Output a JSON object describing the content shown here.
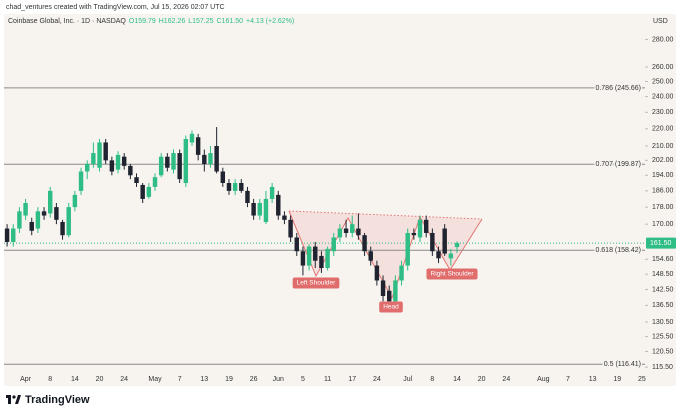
{
  "header": "chad_ventures created with TradingView.com, Jul 15, 2026 02:07 UTC",
  "footer": "TradingView",
  "chart_data": {
    "type": "candlestick",
    "title": "Coinbase Global, Inc. · 1D · NASDAQ",
    "ohlc_text": [
      "O159.79",
      "H162.26",
      "L157.25",
      "C161.50",
      "+4.13 (+2.62%)"
    ],
    "currency": "USD",
    "log_scale": true,
    "up_color": "#2ebd85",
    "down_color": "#1f2430",
    "categories": [
      null,
      null,
      null,
      "Apr",
      null,
      null,
      null,
      "8",
      null,
      null,
      null,
      "14",
      null,
      null,
      null,
      "20",
      null,
      null,
      null,
      "24",
      null,
      null,
      null,
      null,
      "May",
      null,
      null,
      null,
      "7",
      null,
      null,
      null,
      "13",
      null,
      null,
      null,
      "19",
      null,
      null,
      null,
      "26",
      null,
      null,
      null,
      "Jun",
      null,
      null,
      null,
      "5",
      null,
      null,
      null,
      "11",
      null,
      null,
      null,
      "17",
      null,
      null,
      null,
      "24",
      null,
      null,
      null,
      null,
      "Jul",
      null,
      null,
      null,
      "8",
      null,
      null,
      null,
      "14",
      null,
      null,
      null,
      "20",
      null,
      null,
      null,
      "24",
      null,
      null,
      null,
      null,
      null,
      "Aug",
      null,
      null,
      null,
      "7",
      null,
      null,
      null,
      "13",
      null,
      null,
      null,
      "19",
      null,
      null,
      null,
      "25"
    ],
    "open": [
      168,
      162,
      168,
      174,
      171,
      168,
      176,
      175,
      178,
      171,
      165,
      178,
      186,
      196,
      200,
      198,
      212,
      202,
      197,
      204,
      199,
      193,
      189,
      183,
      188,
      194,
      204,
      197,
      206,
      190,
      212,
      215,
      205,
      200,
      210,
      196,
      190,
      186,
      190,
      186,
      180,
      174,
      171,
      182,
      184,
      174,
      172,
      164,
      158,
      152,
      160,
      156,
      151,
      158,
      164,
      168,
      166,
      168,
      165,
      158,
      152,
      146,
      142,
      138,
      146,
      152,
      166,
      164,
      172,
      166,
      158,
      168,
      155,
      159.79,
      null,
      null,
      null,
      null,
      null,
      null,
      null,
      null,
      null,
      null,
      null,
      null,
      null,
      null,
      null,
      null,
      null,
      null,
      null,
      null,
      null,
      null,
      null,
      null,
      null,
      null,
      null,
      null,
      null,
      null
    ],
    "high": [
      170,
      170,
      178,
      182,
      173,
      178,
      178,
      188,
      180,
      172,
      180,
      186,
      198,
      202,
      212,
      214,
      214,
      204,
      207,
      206,
      200,
      195,
      190,
      190,
      195,
      206,
      206,
      208,
      208,
      216,
      219,
      217,
      208,
      210,
      221,
      198,
      192,
      192,
      192,
      188,
      182,
      182,
      186,
      190,
      186,
      176,
      174,
      166,
      160,
      161,
      162,
      158,
      160,
      166,
      170,
      172,
      174,
      175,
      166,
      160,
      154,
      148,
      144,
      148,
      154,
      168,
      168,
      174,
      174,
      168,
      160,
      170,
      159,
      162.26,
      null,
      null,
      null,
      null,
      null,
      null,
      null,
      null,
      null,
      null,
      null,
      null,
      null,
      null,
      null,
      null,
      null,
      null,
      null,
      null,
      null,
      null,
      null,
      null,
      null,
      null,
      null,
      null,
      null,
      null
    ],
    "low": [
      160,
      160,
      166,
      172,
      165,
      166,
      172,
      173,
      170,
      163,
      164,
      176,
      184,
      192,
      198,
      196,
      200,
      194,
      195,
      197,
      192,
      188,
      180,
      182,
      186,
      193,
      196,
      195,
      190,
      188,
      210,
      202,
      196,
      198,
      195,
      188,
      184,
      184,
      185,
      178,
      172,
      172,
      170,
      180,
      172,
      170,
      162,
      156,
      148,
      150,
      151,
      149,
      150,
      156,
      162,
      164,
      164,
      163,
      156,
      152,
      144,
      138,
      136,
      137,
      144,
      150,
      163,
      162,
      164,
      156,
      153,
      156,
      152,
      157.25,
      null,
      null,
      null,
      null,
      null,
      null,
      null,
      null,
      null,
      null,
      null,
      null,
      null,
      null,
      null,
      null,
      null,
      null,
      null,
      null,
      null,
      null,
      null,
      null,
      null,
      null,
      null,
      null,
      null,
      null
    ],
    "close": [
      162,
      168,
      176,
      180,
      167,
      176,
      174,
      186,
      172,
      165,
      178,
      184,
      196,
      200,
      206,
      212,
      202,
      196,
      205,
      199,
      194,
      190,
      182,
      188,
      193,
      204,
      198,
      206,
      192,
      214,
      217,
      205,
      200,
      206,
      196,
      190,
      186,
      190,
      186,
      180,
      174,
      180,
      182,
      188,
      174,
      172,
      164,
      158,
      152,
      160,
      154,
      151,
      159,
      164,
      168,
      166,
      170,
      165,
      158,
      154,
      146,
      140,
      138,
      146,
      152,
      166,
      165,
      172,
      166,
      158,
      155,
      157,
      157,
      161.5,
      null,
      null,
      null,
      null,
      null,
      null,
      null,
      null,
      null,
      null,
      null,
      null,
      null,
      null,
      null,
      null,
      null,
      null,
      null,
      null,
      null,
      null,
      null,
      null,
      null,
      null,
      null,
      null,
      null,
      null
    ],
    "ylim": [
      114,
      300
    ],
    "yticks": [
      {
        "value": 280,
        "label": "280.00"
      },
      {
        "value": 260,
        "label": "260.00"
      },
      {
        "value": 250,
        "label": "250.00"
      },
      {
        "value": 240,
        "label": "240.00"
      },
      {
        "value": 230,
        "label": "230.00"
      },
      {
        "value": 220,
        "label": "220.00"
      },
      {
        "value": 210,
        "label": "210.00"
      },
      {
        "value": 202,
        "label": "202.00"
      },
      {
        "value": 194,
        "label": "194.00"
      },
      {
        "value": 186,
        "label": "186.00"
      },
      {
        "value": 178,
        "label": "178.00"
      },
      {
        "value": 170,
        "label": "170.00"
      },
      {
        "value": 154.6,
        "label": "154.60"
      },
      {
        "value": 148.5,
        "label": "148.50"
      },
      {
        "value": 142.5,
        "label": "142.50"
      },
      {
        "value": 136.5,
        "label": "136.50"
      },
      {
        "value": 130.5,
        "label": "130.50"
      },
      {
        "value": 125.5,
        "label": "125.50"
      },
      {
        "value": 120.5,
        "label": "120.50"
      },
      {
        "value": 115.5,
        "label": "115.50"
      }
    ],
    "fib_levels": [
      {
        "value": 245.66,
        "label": "0.786 (245.66)"
      },
      {
        "value": 199.87,
        "label": "0.707 (199.87)"
      },
      {
        "value": 158.42,
        "label": "0.618 (158.42)"
      },
      {
        "value": 116.41,
        "label": "0.5 (116.41)"
      }
    ],
    "last_price": {
      "value": 161.5,
      "label": "161.50"
    },
    "pattern_labels": [
      "Left Shoulder",
      "Head",
      "Right Shoulder"
    ]
  }
}
